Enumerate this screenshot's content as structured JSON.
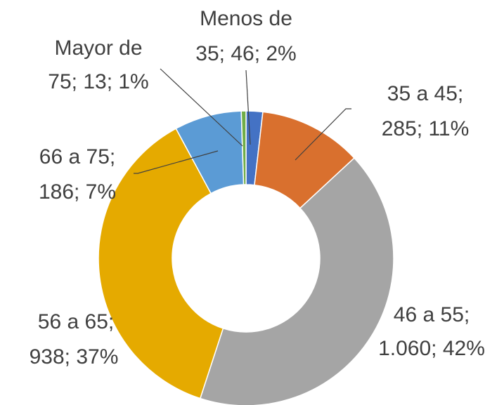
{
  "chart_data": {
    "type": "donut",
    "values": [
      46,
      285,
      1060,
      938,
      186,
      13
    ],
    "value_labels": [
      [
        "Menos de",
        "35; 46; 2%"
      ],
      [
        "35 a 45;",
        "285; 11%"
      ],
      [
        "46 a 55;",
        "1.060; 42%"
      ],
      [
        "56 a 65;",
        "938; 37%"
      ],
      [
        "66 a 75;",
        "186; 7%"
      ],
      [
        "Mayor de",
        "75; 13; 1%"
      ]
    ],
    "colors": [
      "#4472c4",
      "#d9702e",
      "#a5a5a5",
      "#e5aa00",
      "#5b9bd5",
      "#70ad47"
    ]
  }
}
